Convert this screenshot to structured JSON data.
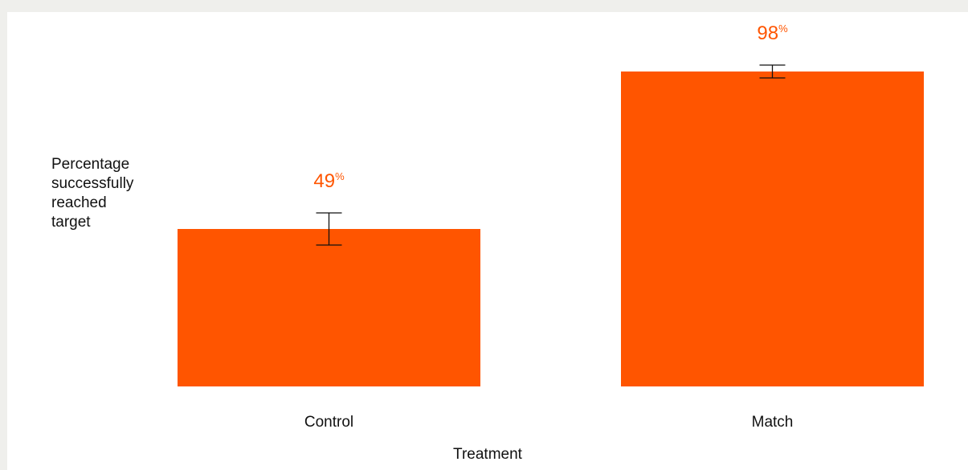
{
  "chart_data": {
    "type": "bar",
    "categories": [
      "Control",
      "Match"
    ],
    "values": [
      49,
      98
    ],
    "error": [
      5,
      2
    ],
    "value_labels": [
      "49",
      "98"
    ],
    "value_suffix": "%",
    "xlabel": "Treatment",
    "ylabel_lines": [
      "Percentage",
      "successfully",
      "reached",
      "target"
    ],
    "ylim": [
      0,
      100
    ],
    "grid": false,
    "legend": "none",
    "colors": {
      "bar": "#ff5500",
      "label": "#ff5500",
      "error_bar": "#111111",
      "text": "#111111",
      "background": "#ffffff",
      "page": "#efefec"
    }
  }
}
